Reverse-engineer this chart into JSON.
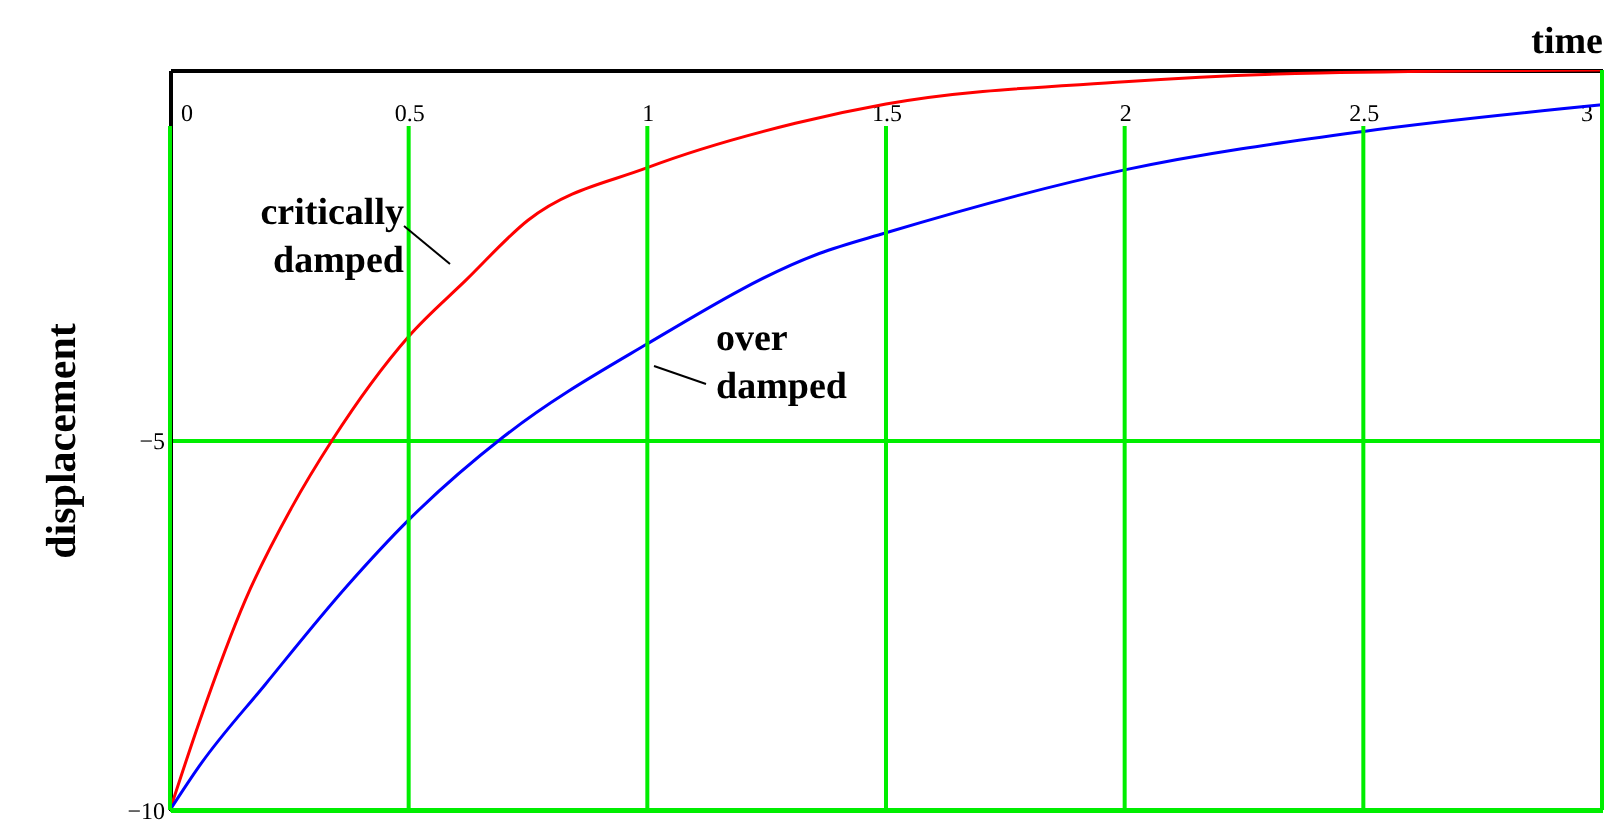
{
  "chart_data": {
    "type": "line",
    "xlabel": "time",
    "ylabel": "displacement",
    "xlim": [
      0,
      3
    ],
    "ylim": [
      -10,
      0
    ],
    "xticks": [
      0,
      0.5,
      1,
      1.5,
      2,
      2.5,
      3
    ],
    "yticks": [
      {
        "value": -10,
        "label": "−10"
      },
      {
        "value": -5,
        "label": "−5"
      },
      {
        "value": 0,
        "label": null
      }
    ],
    "grid": true,
    "marker": "none",
    "line_style": "solid",
    "series": [
      {
        "color": "#ff0000",
        "x": [
          0,
          0.062,
          0.158,
          0.256,
          0.34,
          0.5,
          0.62,
          0.75,
          1,
          1.31,
          1.5,
          2,
          2.41,
          3
        ],
        "values": [
          -10,
          -8.8,
          -7.16,
          -5.9,
          -5,
          -3.6,
          -2.84,
          -2.03,
          -1.32,
          -0.72,
          -0.46,
          -0.16,
          -0.04,
          0
        ]
      },
      {
        "color": "#0000ff",
        "x": [
          0,
          0.062,
          0.2,
          0.37,
          0.5,
          0.7,
          1,
          1.36,
          1.5,
          2,
          2.5,
          3
        ],
        "values": [
          -10,
          -9.4,
          -8.3,
          -6.98,
          -6.08,
          -4.95,
          -3.7,
          -2.48,
          -2.2,
          -1.35,
          -0.83,
          -0.47
        ]
      }
    ],
    "annotations": [
      "critically damped",
      "over damped"
    ]
  }
}
